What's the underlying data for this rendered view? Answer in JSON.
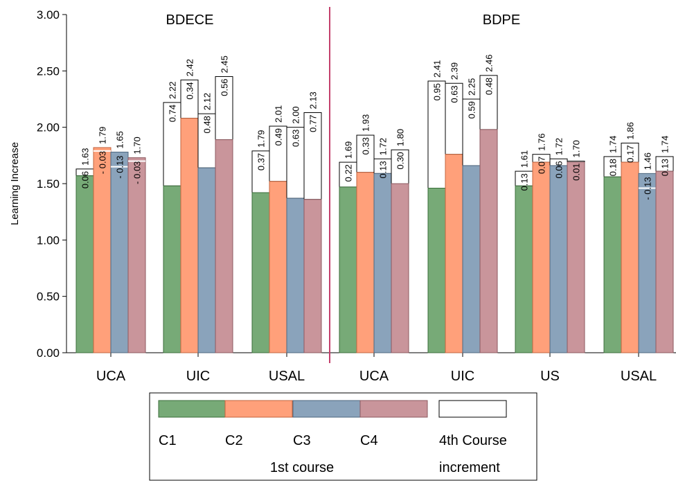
{
  "chart_data": {
    "type": "bar",
    "ylabel": "Learning Increase",
    "ylim": [
      0,
      3
    ],
    "yticks": [
      "0.00",
      "0.50",
      "1.00",
      "1.50",
      "2.00",
      "2.50",
      "3.00"
    ],
    "grid": false,
    "series_colors": {
      "C1": "#77aa77",
      "C2": "#ffa07a",
      "C3": "#8aa3bb",
      "C4": "#c9959b"
    },
    "groups": [
      {
        "name": "BDECE",
        "categories": [
          {
            "label": "UCA",
            "bars": [
              {
                "course": "C1",
                "first": 1.57,
                "increment_label": "0.06",
                "total": 1.63,
                "total_label": "1.63"
              },
              {
                "course": "C2",
                "first": 1.82,
                "increment_label": "- 0.03",
                "total": 1.79,
                "total_label": "1.79"
              },
              {
                "course": "C3",
                "first": 1.78,
                "increment_label": "- 0.13",
                "total": 1.65,
                "total_label": "1.65"
              },
              {
                "course": "C4",
                "first": 1.73,
                "increment_label": "- 0.03",
                "total": 1.7,
                "total_label": "1.70"
              }
            ]
          },
          {
            "label": "UIC",
            "bars": [
              {
                "course": "C1",
                "first": 1.48,
                "increment_label": "0.74",
                "total": 2.22,
                "total_label": "2.22"
              },
              {
                "course": "C2",
                "first": 2.08,
                "increment_label": "0.34",
                "total": 2.42,
                "total_label": "2.42"
              },
              {
                "course": "C3",
                "first": 1.64,
                "increment_label": "0.48",
                "total": 2.12,
                "total_label": "2.12"
              },
              {
                "course": "C4",
                "first": 1.89,
                "increment_label": "0.56",
                "total": 2.45,
                "total_label": "2.45"
              }
            ]
          },
          {
            "label": "USAL",
            "bars": [
              {
                "course": "C1",
                "first": 1.42,
                "increment_label": "0.37",
                "total": 1.79,
                "total_label": "1.79"
              },
              {
                "course": "C2",
                "first": 1.52,
                "increment_label": "0.49",
                "total": 2.01,
                "total_label": "2.01"
              },
              {
                "course": "C3",
                "first": 1.37,
                "increment_label": "0.63",
                "total": 2.0,
                "total_label": "2.00"
              },
              {
                "course": "C4",
                "first": 1.36,
                "increment_label": "0.77",
                "total": 2.13,
                "total_label": "2.13"
              }
            ]
          }
        ]
      },
      {
        "name": "BDPE",
        "categories": [
          {
            "label": "UCA",
            "bars": [
              {
                "course": "C1",
                "first": 1.47,
                "increment_label": "0.22",
                "total": 1.69,
                "total_label": "1.69"
              },
              {
                "course": "C2",
                "first": 1.6,
                "increment_label": "0.33",
                "total": 1.93,
                "total_label": "1.93"
              },
              {
                "course": "C3",
                "first": 1.59,
                "increment_label": "0.13",
                "total": 1.72,
                "total_label": "1.72"
              },
              {
                "course": "C4",
                "first": 1.5,
                "increment_label": "0.30",
                "total": 1.8,
                "total_label": "1.80"
              }
            ]
          },
          {
            "label": "UIC",
            "bars": [
              {
                "course": "C1",
                "first": 1.46,
                "increment_label": "0.95",
                "total": 2.41,
                "total_label": "2.41"
              },
              {
                "course": "C2",
                "first": 1.76,
                "increment_label": "0.63",
                "total": 2.39,
                "total_label": "2.39"
              },
              {
                "course": "C3",
                "first": 1.66,
                "increment_label": "0.59",
                "total": 2.25,
                "total_label": "2.25"
              },
              {
                "course": "C4",
                "first": 1.98,
                "increment_label": "0.48",
                "total": 2.46,
                "total_label": "2.46"
              }
            ]
          },
          {
            "label": "US",
            "bars": [
              {
                "course": "C1",
                "first": 1.48,
                "increment_label": "0.13",
                "total": 1.61,
                "total_label": "1.61"
              },
              {
                "course": "C2",
                "first": 1.69,
                "increment_label": "0.07",
                "total": 1.76,
                "total_label": "1.76"
              },
              {
                "course": "C3",
                "first": 1.66,
                "increment_label": "0.06",
                "total": 1.72,
                "total_label": "1.72"
              },
              {
                "course": "C4",
                "first": 1.69,
                "increment_label": "0.01",
                "total": 1.7,
                "total_label": "1.70"
              }
            ]
          },
          {
            "label": "USAL",
            "bars": [
              {
                "course": "C1",
                "first": 1.56,
                "increment_label": "0.18",
                "total": 1.74,
                "total_label": "1.74"
              },
              {
                "course": "C2",
                "first": 1.69,
                "increment_label": "0.17",
                "total": 1.86,
                "total_label": "1.86"
              },
              {
                "course": "C3",
                "first": 1.59,
                "increment_label": "- 0.13",
                "total": 1.46,
                "total_label": "1.46"
              },
              {
                "course": "C4",
                "first": 1.61,
                "increment_label": "0.13",
                "total": 1.74,
                "total_label": "1.74"
              }
            ]
          }
        ]
      }
    ],
    "legend": {
      "position": "bottom",
      "entries": [
        "C1",
        "C2",
        "C3",
        "C4",
        "4th Course"
      ],
      "caption_left": "1st course",
      "caption_right": "increment"
    }
  }
}
